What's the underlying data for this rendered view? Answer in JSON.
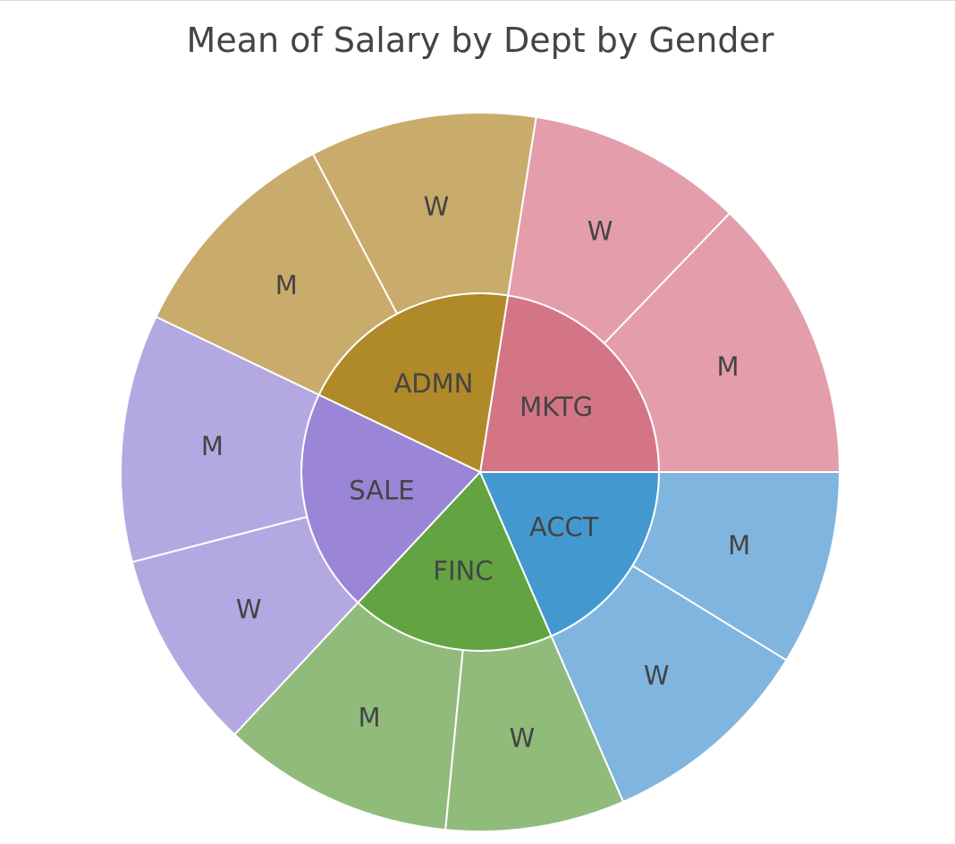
{
  "chart_data": {
    "type": "sunburst",
    "title": "Mean of Salary by Dept by Gender",
    "departments": [
      {
        "label": "MKTG",
        "color": "#d47585",
        "children": [
          {
            "label": "M",
            "value": 0.54,
            "color": "#e39dab"
          },
          {
            "label": "W",
            "value": 0.41,
            "color": "#e39dab"
          }
        ]
      },
      {
        "label": "ADMN",
        "color": "#b08928",
        "children": [
          {
            "label": "W",
            "value": 0.43,
            "color": "#c9ac6c"
          },
          {
            "label": "M",
            "value": 0.43,
            "color": "#c9ac6c"
          }
        ]
      },
      {
        "label": "SALE",
        "color": "#9a85d6",
        "children": [
          {
            "label": "M",
            "value": 0.47,
            "color": "#b4a8e3"
          },
          {
            "label": "W",
            "value": 0.38,
            "color": "#b4a8e3"
          }
        ]
      },
      {
        "label": "FINC",
        "color": "#63a342",
        "children": [
          {
            "label": "M",
            "value": 0.44,
            "color": "#91bb7a"
          },
          {
            "label": "W",
            "value": 0.34,
            "color": "#91bb7a"
          }
        ]
      },
      {
        "label": "ACCT",
        "color": "#4498d0",
        "children": [
          {
            "label": "W",
            "value": 0.41,
            "color": "#80b5df"
          },
          {
            "label": "M",
            "value": 0.37,
            "color": "#80b5df"
          }
        ]
      }
    ]
  }
}
